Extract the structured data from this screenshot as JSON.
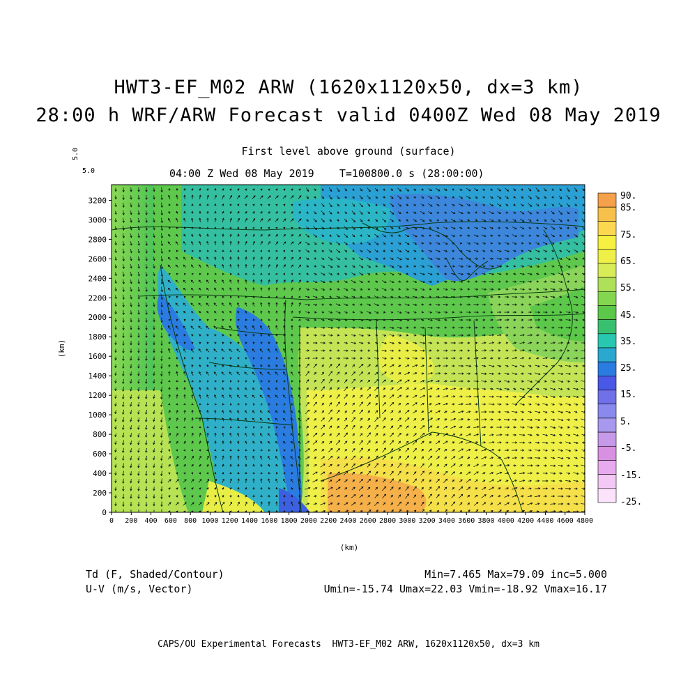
{
  "header": {
    "title_line1": "HWT3-EF_M02 ARW (1620x1120x50, dx=3 km)",
    "title_line2": "28:00 h WRF/ARW Forecast valid 0400Z Wed 08 May 2019",
    "subtitle": "First level above ground (surface)",
    "time_line": "04:00 Z Wed 08 May 2019    T=100800.0 s (28:00:00)",
    "corner_rot": "5.0",
    "corner_flat": "5.0"
  },
  "axes": {
    "xlabel": "(km)",
    "ylabel": "(km)",
    "xticks": [
      "0",
      "200",
      "400",
      "600",
      "800",
      "1000",
      "1200",
      "1400",
      "1600",
      "1800",
      "2000",
      "2200",
      "2400",
      "2600",
      "2800",
      "3000",
      "3200",
      "3400",
      "3600",
      "3800",
      "4000",
      "4200",
      "4400",
      "4600",
      "4800"
    ],
    "yticks": [
      "0",
      "200",
      "400",
      "600",
      "800",
      "1000",
      "1200",
      "1400",
      "1600",
      "1800",
      "2000",
      "2200",
      "2400",
      "2600",
      "2800",
      "3000",
      "3200"
    ]
  },
  "colorbar": {
    "labels": [
      "90.",
      "85.",
      "75.",
      "65.",
      "55.",
      "45.",
      "35.",
      "25.",
      "15.",
      "5.",
      "-5.",
      "-15.",
      "-25."
    ],
    "colors": [
      "#f5a04a",
      "#f7c04a",
      "#fbd850",
      "#f6f040",
      "#eef048",
      "#d8ec58",
      "#aee05a",
      "#84d64e",
      "#5cc84a",
      "#38c070",
      "#28c8b0",
      "#2aa8d0",
      "#2a7ce0",
      "#4a58e8",
      "#7070e8",
      "#8a8aee",
      "#a898ee",
      "#c69ae8",
      "#d890e0",
      "#e8aaee",
      "#f4c8f4",
      "#fbe4fb"
    ]
  },
  "footer": {
    "field1": "Td (F, Shaded/Contour)",
    "field2": "U-V (m/s, Vector)",
    "stats1": "Min=7.465 Max=79.09 inc=5.000",
    "stats2": "Umin=-15.74 Umax=22.03 Vmin=-18.92 Vmax=16.17",
    "credit": "CAPS/OU Experimental Forecasts  HWT3-EF_M02 ARW, 1620x1120x50, dx=3 km"
  }
}
